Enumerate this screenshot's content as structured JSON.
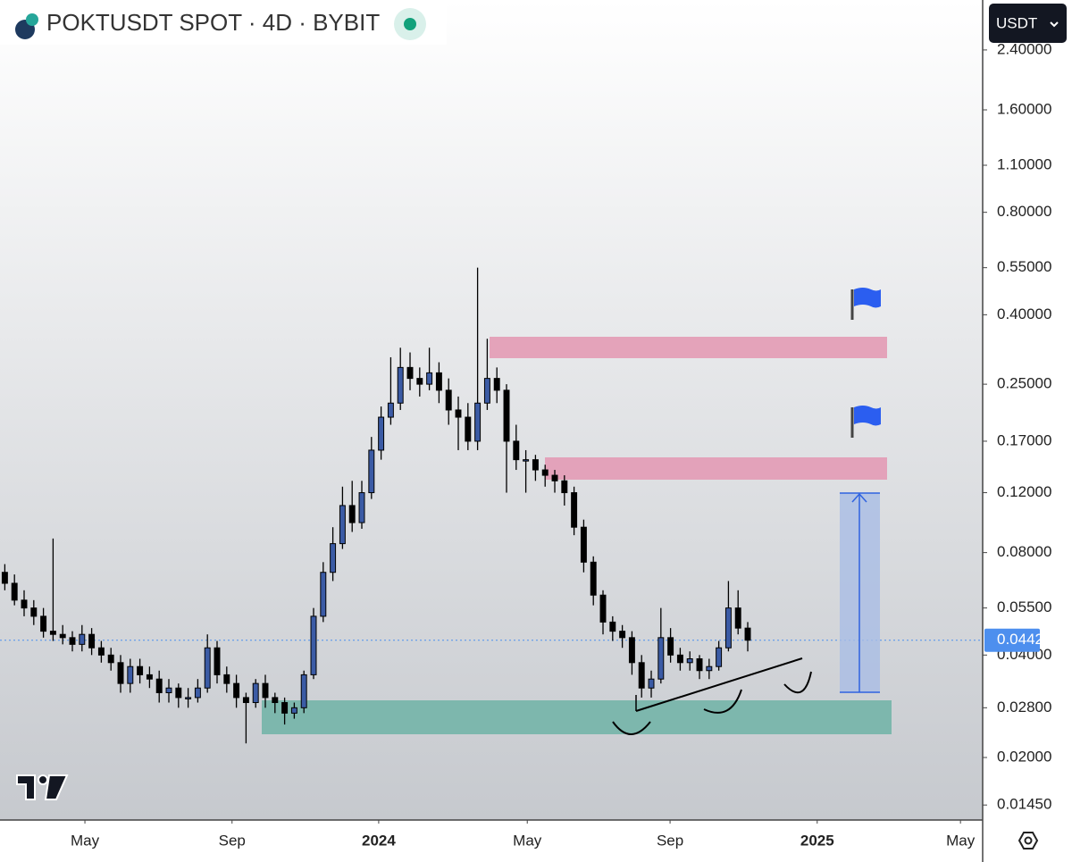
{
  "chart_data": {
    "type": "candlestick",
    "title": "POKTUSDT SPOT · 4D · BYBIT",
    "currency": "USDT",
    "log_scale": true,
    "up_color": "#3b5ba5",
    "down_color": "#000000",
    "current_price": 0.04422,
    "current_price_color": "#4d8fee",
    "x": [
      1,
      3,
      5,
      7,
      9,
      11,
      13,
      15,
      17,
      19,
      21,
      23,
      25,
      27,
      29,
      31,
      33,
      35,
      37,
      39,
      41,
      43,
      45,
      47,
      49,
      51,
      53,
      55,
      57,
      59,
      61,
      63,
      65,
      67,
      69,
      71,
      73,
      75,
      77,
      79,
      81,
      83,
      85,
      87,
      89,
      91,
      93,
      95,
      97,
      99,
      101,
      103,
      105,
      107,
      109,
      111,
      113,
      115,
      117,
      119,
      121,
      123,
      125,
      127,
      129,
      131,
      133,
      135,
      137,
      139,
      141,
      143,
      145,
      147,
      149,
      151,
      153,
      155
    ],
    "open": [
      0.07,
      0.065,
      0.058,
      0.055,
      0.052,
      0.047,
      0.046,
      0.045,
      0.043,
      0.046,
      0.042,
      0.04,
      0.038,
      0.033,
      0.037,
      0.035,
      0.034,
      0.031,
      0.032,
      0.03,
      0.03,
      0.032,
      0.042,
      0.035,
      0.033,
      0.03,
      0.029,
      0.033,
      0.03,
      0.029,
      0.027,
      0.028,
      0.035,
      0.052,
      0.07,
      0.085,
      0.11,
      0.098,
      0.12,
      0.16,
      0.2,
      0.22,
      0.28,
      0.26,
      0.25,
      0.27,
      0.24,
      0.21,
      0.2,
      0.17,
      0.22,
      0.26,
      0.24,
      0.17,
      0.15,
      0.15,
      0.14,
      0.135,
      0.13,
      0.12,
      0.095,
      0.075,
      0.06,
      0.05,
      0.047,
      0.045,
      0.038,
      0.032,
      0.034,
      0.045,
      0.04,
      0.038,
      0.039,
      0.036,
      0.037,
      0.042,
      0.055,
      0.048
    ],
    "high": [
      0.074,
      0.069,
      0.062,
      0.058,
      0.055,
      0.088,
      0.049,
      0.047,
      0.049,
      0.048,
      0.044,
      0.042,
      0.04,
      0.039,
      0.039,
      0.037,
      0.036,
      0.034,
      0.033,
      0.032,
      0.034,
      0.046,
      0.044,
      0.037,
      0.035,
      0.031,
      0.034,
      0.035,
      0.031,
      0.03,
      0.029,
      0.036,
      0.055,
      0.075,
      0.095,
      0.125,
      0.13,
      0.13,
      0.175,
      0.215,
      0.3,
      0.32,
      0.31,
      0.28,
      0.32,
      0.29,
      0.26,
      0.23,
      0.22,
      0.55,
      0.34,
      0.28,
      0.25,
      0.19,
      0.16,
      0.155,
      0.145,
      0.14,
      0.135,
      0.125,
      0.1,
      0.078,
      0.062,
      0.052,
      0.049,
      0.047,
      0.04,
      0.036,
      0.055,
      0.048,
      0.042,
      0.041,
      0.04,
      0.039,
      0.044,
      0.066,
      0.062,
      0.05
    ],
    "low": [
      0.062,
      0.056,
      0.052,
      0.049,
      0.045,
      0.044,
      0.043,
      0.041,
      0.041,
      0.04,
      0.038,
      0.036,
      0.031,
      0.031,
      0.033,
      0.032,
      0.029,
      0.029,
      0.028,
      0.028,
      0.029,
      0.031,
      0.033,
      0.031,
      0.028,
      0.022,
      0.028,
      0.028,
      0.027,
      0.025,
      0.026,
      0.027,
      0.034,
      0.05,
      0.066,
      0.082,
      0.092,
      0.094,
      0.115,
      0.15,
      0.19,
      0.21,
      0.24,
      0.23,
      0.24,
      0.22,
      0.19,
      0.16,
      0.16,
      0.16,
      0.21,
      0.22,
      0.12,
      0.14,
      0.12,
      0.13,
      0.125,
      0.12,
      0.11,
      0.09,
      0.07,
      0.056,
      0.046,
      0.044,
      0.042,
      0.035,
      0.03,
      0.03,
      0.033,
      0.038,
      0.036,
      0.036,
      0.034,
      0.034,
      0.036,
      0.041,
      0.046,
      0.041
    ],
    "close": [
      0.065,
      0.058,
      0.055,
      0.052,
      0.047,
      0.046,
      0.045,
      0.043,
      0.046,
      0.042,
      0.04,
      0.038,
      0.033,
      0.037,
      0.035,
      0.034,
      0.031,
      0.032,
      0.03,
      0.03,
      0.032,
      0.042,
      0.035,
      0.033,
      0.03,
      0.029,
      0.033,
      0.03,
      0.029,
      0.027,
      0.028,
      0.035,
      0.052,
      0.07,
      0.085,
      0.11,
      0.098,
      0.12,
      0.16,
      0.2,
      0.22,
      0.28,
      0.26,
      0.25,
      0.27,
      0.24,
      0.21,
      0.2,
      0.17,
      0.22,
      0.26,
      0.24,
      0.17,
      0.15,
      0.15,
      0.14,
      0.135,
      0.13,
      0.12,
      0.095,
      0.075,
      0.06,
      0.05,
      0.047,
      0.045,
      0.038,
      0.032,
      0.034,
      0.045,
      0.04,
      0.038,
      0.039,
      0.036,
      0.037,
      0.042,
      0.055,
      0.048,
      0.04422
    ],
    "xlim": [
      0,
      203.7
    ],
    "xticks": [
      {
        "value": 17.6,
        "label": "May"
      },
      {
        "value": 48.1,
        "label": "Sep"
      },
      {
        "value": 78.5,
        "label": "2024"
      },
      {
        "value": 109.3,
        "label": "May"
      },
      {
        "value": 138.9,
        "label": "Sep"
      },
      {
        "value": 169.4,
        "label": "2025"
      },
      {
        "value": 199.1,
        "label": "May"
      }
    ],
    "ylim": [
      0.0131,
      3.365
    ],
    "yticks": [
      {
        "value": 2.4,
        "label": "2.40000"
      },
      {
        "value": 1.6,
        "label": "1.60000"
      },
      {
        "value": 1.1,
        "label": "1.10000"
      },
      {
        "value": 0.8,
        "label": "0.80000"
      },
      {
        "value": 0.55,
        "label": "0.55000"
      },
      {
        "value": 0.4,
        "label": "0.40000"
      },
      {
        "value": 0.25,
        "label": "0.25000"
      },
      {
        "value": 0.17,
        "label": "0.17000"
      },
      {
        "value": 0.12,
        "label": "0.12000"
      },
      {
        "value": 0.08,
        "label": "0.08000"
      },
      {
        "value": 0.055,
        "label": "0.05500"
      },
      {
        "value": 0.04,
        "label": "0.04000"
      },
      {
        "value": 0.028,
        "label": "0.02800"
      },
      {
        "value": 0.02,
        "label": "0.02000"
      },
      {
        "value": 0.0145,
        "label": "0.01450"
      }
    ]
  }
}
